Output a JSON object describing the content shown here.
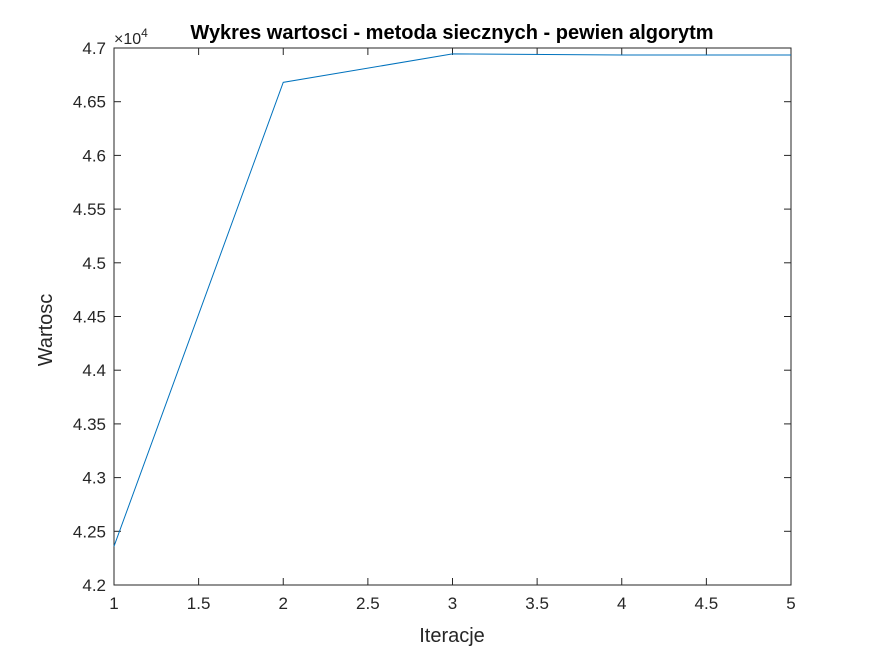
{
  "chart_data": {
    "type": "line",
    "title": "Wykres wartosci - metoda siecznych - pewien algorytm",
    "xlabel": "Iteracje",
    "ylabel": "Wartosc",
    "y_exponent": "×10",
    "y_exponent_power": "4",
    "x": [
      1,
      2,
      3,
      4,
      5
    ],
    "series": [
      {
        "values": [
          42360,
          46680,
          46945,
          46935,
          46935
        ],
        "color": "#0072BD"
      }
    ],
    "xlim": [
      1,
      5
    ],
    "ylim": [
      42000,
      47000
    ],
    "xticks": [
      1,
      1.5,
      2,
      2.5,
      3,
      3.5,
      4,
      4.5,
      5
    ],
    "xtick_labels": [
      "1",
      "1.5",
      "2",
      "2.5",
      "3",
      "3.5",
      "4",
      "4.5",
      "5"
    ],
    "yticks": [
      42000,
      42500,
      43000,
      43500,
      44000,
      44500,
      45000,
      45500,
      46000,
      46500,
      47000
    ],
    "ytick_labels": [
      "4.2",
      "4.25",
      "4.3",
      "4.35",
      "4.4",
      "4.45",
      "4.5",
      "4.55",
      "4.6",
      "4.65",
      "4.7"
    ],
    "grid": false,
    "legend": false
  }
}
